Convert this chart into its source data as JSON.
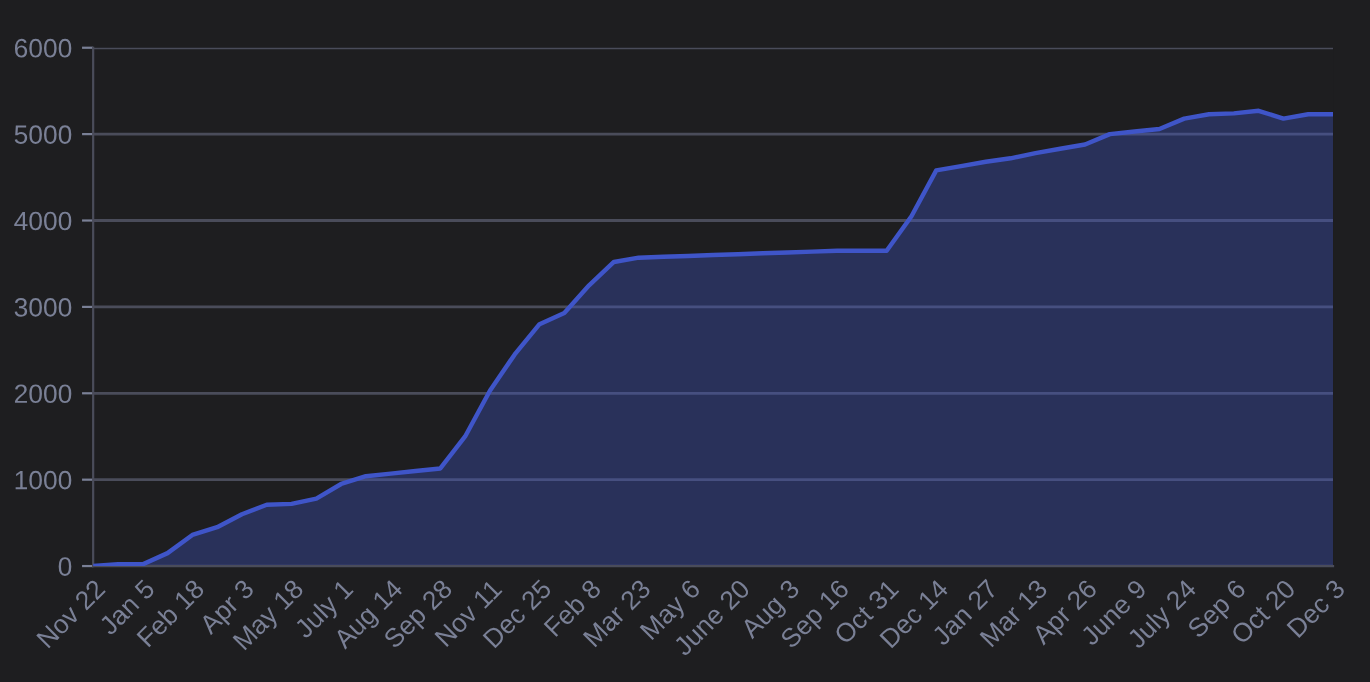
{
  "chart_data": {
    "type": "area",
    "categories": [
      "Nov 22",
      null,
      "Jan 5",
      null,
      "Feb 18",
      null,
      "Apr 3",
      null,
      "May 18",
      null,
      "July 1",
      null,
      "Aug 14",
      null,
      "Sep 28",
      null,
      "Nov 11",
      null,
      "Dec 25",
      null,
      "Feb 8",
      null,
      "Mar 23",
      null,
      "May 6",
      null,
      "June 20",
      null,
      "Aug 3",
      null,
      "Sep 16",
      null,
      "Oct 31",
      null,
      "Dec 14",
      null,
      "Jan 27",
      null,
      "Mar 13",
      null,
      "Apr 26",
      null,
      "June 9",
      null,
      "July 24",
      null,
      "Sep 6",
      null,
      "Oct 20",
      null,
      "Dec 3"
    ],
    "series": [
      {
        "color": "#3f55c8",
        "values": [
          0,
          20,
          20,
          150,
          360,
          450,
          600,
          710,
          720,
          780,
          950,
          1040,
          1070,
          1100,
          1130,
          1500,
          2030,
          2450,
          2800,
          2930,
          3250,
          3520,
          3570,
          3580,
          3590,
          3600,
          3610,
          3620,
          3630,
          3640,
          3650,
          3650,
          3650,
          4050,
          4580,
          4630,
          4680,
          4720,
          4780,
          4830,
          4880,
          5000,
          5030,
          5060,
          5180,
          5230,
          5240,
          5270,
          5180,
          5230,
          5230
        ]
      }
    ],
    "ylim": [
      0,
      6000
    ],
    "yticks": [
      0,
      1000,
      2000,
      3000,
      4000,
      5000,
      6000
    ],
    "grid": "y",
    "marker": "none",
    "line_style": "solid"
  }
}
